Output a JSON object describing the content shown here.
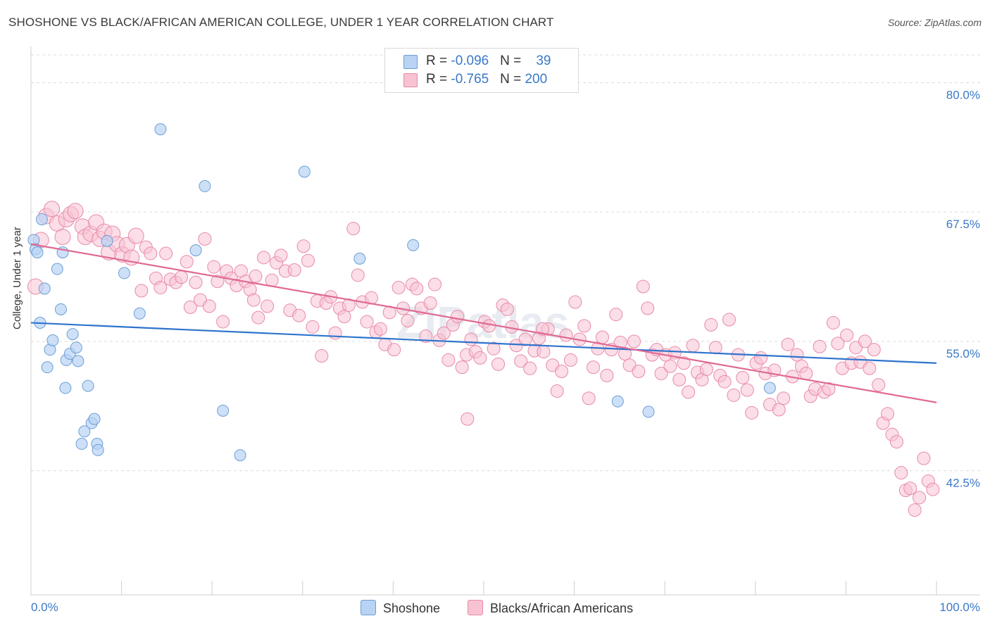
{
  "title": "SHOSHONE VS BLACK/AFRICAN AMERICAN COLLEGE, UNDER 1 YEAR CORRELATION CHART",
  "source": "Source: ZipAtlas.com",
  "legend_top": {
    "row1": {
      "r_label": "R = ",
      "r_value": "-0.096",
      "n_label": "N = ",
      "n_value": "39"
    },
    "row2": {
      "r_label": "R = ",
      "r_value": "-0.765",
      "n_label": "N = ",
      "n_value": "200"
    }
  },
  "colors": {
    "shoshone_fill": "#b8d3f3",
    "shoshone_stroke": "#6d9ed6",
    "shoshone_line": "#2e74cc",
    "black_fill": "#f7c3d3",
    "black_stroke": "#e88aa8",
    "black_line": "#e06a93",
    "tick_label": "#3a78c9",
    "grid": "#dcdcdc"
  },
  "chart_data": {
    "type": "scatter",
    "title": "SHOSHONE VS BLACK/AFRICAN AMERICAN COLLEGE, UNDER 1 YEAR CORRELATION CHART",
    "xlabel": "",
    "ylabel": "College, Under 1 year",
    "xlim": [
      0,
      100
    ],
    "ylim": [
      30.5,
      83.5
    ],
    "x_tick_labels": [
      "0.0%",
      "100.0%"
    ],
    "y_ticks": [
      42.5,
      55.0,
      67.5,
      80.0
    ],
    "y_tick_labels": [
      "42.5%",
      "55.0%",
      "67.5%",
      "80.0%"
    ],
    "grid": true,
    "legend_placement": "bottom",
    "watermark": "ZIPatlas",
    "series": [
      {
        "name": "Shoshone",
        "r": -0.096,
        "n": 39,
        "trend": {
          "x": [
            0,
            100
          ],
          "y": [
            56.8,
            52.9
          ]
        },
        "points": [
          [
            0.3,
            64.8
          ],
          [
            0.5,
            63.9
          ],
          [
            0.7,
            63.6
          ],
          [
            1.0,
            56.8
          ],
          [
            1.2,
            66.8
          ],
          [
            1.5,
            60.1
          ],
          [
            1.8,
            52.5
          ],
          [
            2.1,
            54.2
          ],
          [
            2.4,
            55.1
          ],
          [
            2.9,
            62.0
          ],
          [
            3.3,
            58.1
          ],
          [
            3.5,
            63.6
          ],
          [
            3.8,
            50.5
          ],
          [
            3.9,
            53.2
          ],
          [
            4.3,
            53.8
          ],
          [
            4.6,
            55.7
          ],
          [
            5.0,
            54.4
          ],
          [
            5.2,
            53.1
          ],
          [
            5.6,
            45.1
          ],
          [
            5.9,
            46.3
          ],
          [
            6.3,
            50.7
          ],
          [
            6.7,
            47.1
          ],
          [
            7.0,
            47.5
          ],
          [
            7.3,
            45.1
          ],
          [
            7.4,
            44.5
          ],
          [
            8.4,
            64.7
          ],
          [
            10.3,
            61.6
          ],
          [
            12.0,
            57.7
          ],
          [
            14.3,
            75.5
          ],
          [
            18.2,
            63.8
          ],
          [
            19.2,
            70.0
          ],
          [
            21.2,
            48.3
          ],
          [
            23.1,
            44.0
          ],
          [
            30.2,
            71.4
          ],
          [
            36.3,
            63.0
          ],
          [
            42.2,
            64.3
          ],
          [
            64.8,
            49.2
          ],
          [
            68.2,
            48.2
          ],
          [
            81.6,
            50.5
          ]
        ]
      },
      {
        "name": "Blacks/African Americans",
        "r": -0.765,
        "n": 200,
        "trend": {
          "x": [
            0,
            100
          ],
          "y": [
            64.4,
            49.1
          ]
        },
        "points": [
          [
            0.5,
            60.3
          ],
          [
            1.1,
            64.8
          ],
          [
            1.7,
            67.1
          ],
          [
            2.3,
            67.8
          ],
          [
            2.9,
            66.4
          ],
          [
            3.5,
            65.1
          ],
          [
            3.9,
            66.8
          ],
          [
            4.4,
            67.3
          ],
          [
            4.9,
            67.6
          ],
          [
            5.7,
            66.1
          ],
          [
            6.0,
            65.1
          ],
          [
            6.6,
            65.4
          ],
          [
            7.2,
            66.5
          ],
          [
            7.6,
            64.9
          ],
          [
            8.1,
            65.6
          ],
          [
            8.6,
            63.6
          ],
          [
            9.0,
            65.4
          ],
          [
            9.5,
            64.4
          ],
          [
            10.1,
            63.4
          ],
          [
            10.6,
            64.3
          ],
          [
            11.1,
            63.1
          ],
          [
            11.6,
            65.2
          ],
          [
            12.2,
            59.9
          ],
          [
            12.7,
            64.1
          ],
          [
            13.2,
            63.5
          ],
          [
            13.8,
            61.1
          ],
          [
            14.3,
            60.2
          ],
          [
            14.9,
            63.5
          ],
          [
            15.4,
            61.0
          ],
          [
            16.0,
            60.7
          ],
          [
            16.6,
            61.2
          ],
          [
            17.2,
            62.7
          ],
          [
            17.6,
            58.3
          ],
          [
            18.2,
            60.7
          ],
          [
            18.7,
            59.0
          ],
          [
            19.2,
            64.9
          ],
          [
            19.7,
            58.4
          ],
          [
            20.2,
            62.2
          ],
          [
            20.6,
            60.8
          ],
          [
            21.2,
            56.9
          ],
          [
            21.6,
            61.8
          ],
          [
            22.1,
            61.1
          ],
          [
            22.7,
            60.4
          ],
          [
            23.2,
            61.8
          ],
          [
            23.7,
            60.8
          ],
          [
            24.2,
            60.0
          ],
          [
            24.6,
            59.0
          ],
          [
            25.1,
            57.3
          ],
          [
            25.7,
            63.1
          ],
          [
            26.1,
            58.4
          ],
          [
            26.6,
            60.9
          ],
          [
            27.1,
            62.6
          ],
          [
            27.6,
            63.3
          ],
          [
            28.1,
            61.8
          ],
          [
            28.6,
            58.0
          ],
          [
            29.1,
            61.9
          ],
          [
            29.6,
            57.5
          ],
          [
            30.1,
            64.2
          ],
          [
            30.6,
            62.8
          ],
          [
            31.1,
            56.4
          ],
          [
            31.6,
            58.9
          ],
          [
            32.1,
            53.6
          ],
          [
            32.6,
            58.7
          ],
          [
            33.1,
            59.3
          ],
          [
            33.6,
            55.8
          ],
          [
            34.1,
            58.2
          ],
          [
            34.6,
            57.4
          ],
          [
            35.1,
            58.5
          ],
          [
            35.6,
            65.9
          ],
          [
            36.1,
            61.4
          ],
          [
            36.6,
            58.8
          ],
          [
            37.1,
            56.9
          ],
          [
            37.6,
            59.2
          ],
          [
            38.1,
            55.9
          ],
          [
            38.6,
            56.2
          ],
          [
            39.1,
            54.7
          ],
          [
            39.6,
            57.8
          ],
          [
            40.1,
            54.2
          ],
          [
            40.6,
            60.2
          ],
          [
            41.1,
            58.2
          ],
          [
            41.6,
            57.0
          ],
          [
            42.1,
            60.5
          ],
          [
            42.6,
            60.1
          ],
          [
            43.1,
            58.2
          ],
          [
            43.6,
            55.5
          ],
          [
            44.1,
            58.7
          ],
          [
            44.6,
            60.5
          ],
          [
            45.1,
            55.1
          ],
          [
            45.6,
            55.8
          ],
          [
            46.1,
            53.2
          ],
          [
            46.6,
            56.6
          ],
          [
            47.1,
            57.4
          ],
          [
            47.6,
            52.5
          ],
          [
            48.1,
            53.7
          ],
          [
            48.6,
            55.2
          ],
          [
            49.1,
            54.0
          ],
          [
            49.6,
            53.4
          ],
          [
            50.1,
            56.9
          ],
          [
            50.6,
            56.5
          ],
          [
            51.1,
            54.3
          ],
          [
            51.6,
            52.8
          ],
          [
            52.1,
            58.5
          ],
          [
            52.6,
            58.1
          ],
          [
            53.1,
            56.4
          ],
          [
            53.6,
            54.6
          ],
          [
            54.1,
            53.1
          ],
          [
            54.6,
            55.2
          ],
          [
            55.1,
            52.4
          ],
          [
            55.6,
            54.1
          ],
          [
            56.1,
            55.3
          ],
          [
            56.6,
            54.0
          ],
          [
            57.1,
            56.2
          ],
          [
            57.6,
            52.7
          ],
          [
            58.1,
            50.2
          ],
          [
            58.6,
            52.1
          ],
          [
            59.1,
            55.6
          ],
          [
            59.6,
            53.2
          ],
          [
            60.1,
            58.8
          ],
          [
            60.6,
            55.2
          ],
          [
            61.1,
            56.5
          ],
          [
            61.6,
            49.5
          ],
          [
            62.1,
            52.5
          ],
          [
            62.6,
            54.3
          ],
          [
            63.1,
            55.4
          ],
          [
            63.6,
            51.7
          ],
          [
            64.1,
            54.2
          ],
          [
            64.6,
            57.6
          ],
          [
            65.1,
            54.9
          ],
          [
            65.6,
            53.8
          ],
          [
            66.1,
            52.7
          ],
          [
            66.6,
            55.0
          ],
          [
            67.1,
            52.1
          ],
          [
            67.6,
            60.3
          ],
          [
            68.1,
            58.2
          ],
          [
            68.6,
            53.7
          ],
          [
            69.1,
            54.2
          ],
          [
            69.6,
            51.9
          ],
          [
            70.1,
            53.7
          ],
          [
            70.6,
            52.6
          ],
          [
            71.1,
            53.9
          ],
          [
            71.6,
            51.3
          ],
          [
            72.1,
            52.9
          ],
          [
            72.6,
            50.1
          ],
          [
            73.1,
            54.6
          ],
          [
            73.6,
            52.0
          ],
          [
            74.1,
            51.3
          ],
          [
            74.6,
            52.3
          ],
          [
            75.1,
            56.6
          ],
          [
            75.6,
            54.4
          ],
          [
            76.1,
            51.7
          ],
          [
            76.6,
            51.1
          ],
          [
            77.1,
            57.1
          ],
          [
            77.6,
            49.8
          ],
          [
            78.1,
            53.7
          ],
          [
            78.6,
            51.5
          ],
          [
            79.1,
            50.3
          ],
          [
            79.6,
            48.1
          ],
          [
            80.1,
            52.9
          ],
          [
            80.6,
            53.4
          ],
          [
            81.1,
            51.9
          ],
          [
            81.6,
            48.9
          ],
          [
            82.1,
            52.2
          ],
          [
            82.6,
            48.4
          ],
          [
            83.1,
            49.5
          ],
          [
            83.6,
            54.7
          ],
          [
            84.1,
            51.6
          ],
          [
            84.6,
            53.7
          ],
          [
            85.1,
            52.6
          ],
          [
            85.6,
            51.9
          ],
          [
            86.1,
            49.7
          ],
          [
            86.6,
            50.4
          ],
          [
            87.1,
            54.5
          ],
          [
            87.6,
            50.1
          ],
          [
            88.1,
            50.4
          ],
          [
            88.6,
            56.8
          ],
          [
            89.1,
            54.8
          ],
          [
            89.6,
            52.4
          ],
          [
            90.1,
            55.6
          ],
          [
            90.6,
            52.9
          ],
          [
            91.1,
            54.4
          ],
          [
            91.6,
            53.0
          ],
          [
            92.1,
            55.0
          ],
          [
            92.6,
            52.4
          ],
          [
            93.1,
            54.2
          ],
          [
            93.6,
            50.8
          ],
          [
            94.1,
            47.1
          ],
          [
            94.6,
            48.0
          ],
          [
            95.1,
            46.0
          ],
          [
            95.6,
            45.3
          ],
          [
            96.1,
            42.3
          ],
          [
            96.6,
            40.6
          ],
          [
            97.1,
            40.8
          ],
          [
            97.6,
            38.7
          ],
          [
            98.1,
            39.9
          ],
          [
            98.6,
            43.7
          ],
          [
            99.1,
            41.5
          ],
          [
            99.6,
            40.7
          ],
          [
            24.8,
            61.3
          ],
          [
            48.2,
            47.5
          ],
          [
            56.5,
            56.2
          ]
        ]
      }
    ]
  },
  "legend_bottom": {
    "item1": "Shoshone",
    "item2": "Blacks/African Americans"
  }
}
